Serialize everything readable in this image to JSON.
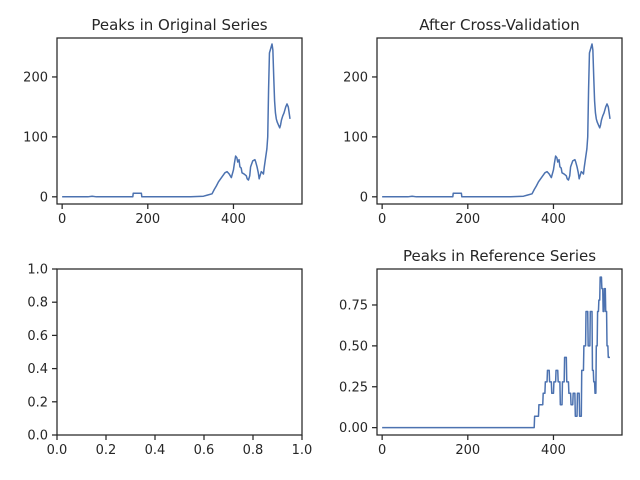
{
  "accent": "#4c72b0",
  "chart_data": [
    {
      "type": "line",
      "title": "Peaks in Original Series",
      "xlim": [
        -12,
        560
      ],
      "ylim": [
        -12,
        265
      ],
      "xticks": [
        0,
        200,
        400
      ],
      "yticks": [
        0,
        100,
        200
      ],
      "xtick_labels": [
        "0",
        "200",
        "400"
      ],
      "ytick_labels": [
        "0",
        "100",
        "200"
      ],
      "series": [
        {
          "x": [
            0,
            60,
            70,
            80,
            100,
            165,
            166,
            175,
            176,
            185,
            186,
            200,
            250,
            300,
            330,
            340,
            350,
            355,
            360,
            365,
            370,
            375,
            380,
            385,
            390,
            395,
            400,
            402,
            405,
            408,
            410,
            413,
            415,
            418,
            420,
            425,
            430,
            432,
            435,
            438,
            440,
            445,
            450,
            452,
            455,
            458,
            460,
            462,
            465,
            468,
            470,
            472,
            475,
            478,
            480,
            482,
            484,
            486,
            488,
            490,
            492,
            494,
            496,
            498,
            500,
            502,
            505,
            508,
            510,
            512,
            515,
            518,
            520,
            522,
            525,
            528,
            530,
            532
          ],
          "y": [
            0,
            0,
            1,
            0,
            0,
            0,
            6,
            6,
            6,
            6,
            0,
            0,
            0,
            0,
            1,
            3,
            5,
            12,
            18,
            25,
            30,
            35,
            40,
            42,
            38,
            32,
            45,
            55,
            68,
            65,
            58,
            62,
            50,
            48,
            40,
            38,
            35,
            30,
            28,
            35,
            50,
            60,
            62,
            58,
            50,
            40,
            30,
            35,
            42,
            40,
            38,
            50,
            65,
            80,
            100,
            180,
            240,
            245,
            250,
            255,
            245,
            200,
            160,
            140,
            130,
            125,
            120,
            115,
            120,
            128,
            135,
            140,
            145,
            150,
            155,
            150,
            140,
            130
          ]
        }
      ]
    },
    {
      "type": "line",
      "title": "After Cross-Validation",
      "xlim": [
        -12,
        560
      ],
      "ylim": [
        -12,
        265
      ],
      "xticks": [
        0,
        200,
        400
      ],
      "yticks": [
        0,
        100,
        200
      ],
      "xtick_labels": [
        "0",
        "200",
        "400"
      ],
      "ytick_labels": [
        "0",
        "100",
        "200"
      ],
      "series": [
        {
          "x": [
            0,
            60,
            70,
            80,
            100,
            165,
            166,
            175,
            176,
            185,
            186,
            200,
            250,
            300,
            330,
            340,
            350,
            355,
            360,
            365,
            370,
            375,
            380,
            385,
            390,
            395,
            400,
            402,
            405,
            408,
            410,
            413,
            415,
            418,
            420,
            425,
            430,
            432,
            435,
            438,
            440,
            445,
            450,
            452,
            455,
            458,
            460,
            462,
            465,
            468,
            470,
            472,
            475,
            478,
            480,
            482,
            484,
            486,
            488,
            490,
            492,
            494,
            496,
            498,
            500,
            502,
            505,
            508,
            510,
            512,
            515,
            518,
            520,
            522,
            525,
            528,
            530,
            532
          ],
          "y": [
            0,
            0,
            1,
            0,
            0,
            0,
            6,
            6,
            6,
            6,
            0,
            0,
            0,
            0,
            1,
            3,
            5,
            12,
            18,
            25,
            30,
            35,
            40,
            42,
            38,
            32,
            45,
            55,
            68,
            65,
            58,
            62,
            50,
            48,
            40,
            38,
            35,
            30,
            28,
            35,
            50,
            60,
            62,
            58,
            50,
            40,
            30,
            35,
            42,
            40,
            38,
            50,
            65,
            80,
            100,
            180,
            240,
            245,
            250,
            255,
            245,
            200,
            160,
            140,
            130,
            125,
            120,
            115,
            120,
            128,
            135,
            140,
            145,
            150,
            155,
            150,
            140,
            130
          ]
        }
      ]
    },
    {
      "type": "line",
      "title": "",
      "xlim": [
        0,
        1
      ],
      "ylim": [
        0,
        1
      ],
      "xticks": [
        0,
        0.2,
        0.4,
        0.6,
        0.8,
        1.0
      ],
      "yticks": [
        0,
        0.2,
        0.4,
        0.6,
        0.8,
        1.0
      ],
      "xtick_labels": [
        "0.0",
        "0.2",
        "0.4",
        "0.6",
        "0.8",
        "1.0"
      ],
      "ytick_labels": [
        "0.0",
        "0.2",
        "0.4",
        "0.6",
        "0.8",
        "1.0"
      ],
      "series": []
    },
    {
      "type": "line",
      "title": "Peaks in Reference Series",
      "xlim": [
        -12,
        560
      ],
      "ylim": [
        -0.045,
        0.97
      ],
      "xticks": [
        0,
        200,
        400
      ],
      "yticks": [
        0,
        0.25,
        0.5,
        0.75
      ],
      "xtick_labels": [
        "0",
        "200",
        "400"
      ],
      "ytick_labels": [
        "0.00",
        "0.25",
        "0.50",
        "0.75"
      ],
      "series": [
        {
          "x": [
            0,
            355,
            356,
            365,
            366,
            375,
            376,
            380,
            381,
            385,
            386,
            390,
            391,
            395,
            396,
            400,
            401,
            405,
            406,
            410,
            411,
            415,
            416,
            420,
            421,
            425,
            426,
            430,
            431,
            435,
            436,
            440,
            441,
            445,
            446,
            450,
            451,
            455,
            456,
            460,
            461,
            465,
            466,
            470,
            471,
            475,
            476,
            480,
            481,
            485,
            486,
            490,
            491,
            493,
            494,
            496,
            497,
            499,
            500,
            502,
            503,
            505,
            506,
            508,
            509,
            512,
            513,
            515,
            516,
            518,
            519,
            521,
            522,
            524,
            525,
            527,
            528,
            530,
            531,
            532
          ],
          "y": [
            0,
            0,
            0.07,
            0.07,
            0.14,
            0.14,
            0.21,
            0.21,
            0.28,
            0.28,
            0.35,
            0.35,
            0.28,
            0.28,
            0.21,
            0.21,
            0.28,
            0.28,
            0.35,
            0.35,
            0.28,
            0.28,
            0.14,
            0.14,
            0.28,
            0.28,
            0.43,
            0.43,
            0.28,
            0.28,
            0.21,
            0.21,
            0.14,
            0.14,
            0.21,
            0.21,
            0.07,
            0.07,
            0.21,
            0.21,
            0.07,
            0.07,
            0.35,
            0.35,
            0.5,
            0.5,
            0.71,
            0.71,
            0.5,
            0.5,
            0.71,
            0.71,
            0.35,
            0.35,
            0.28,
            0.28,
            0.21,
            0.21,
            0.5,
            0.5,
            0.71,
            0.71,
            0.78,
            0.78,
            0.92,
            0.92,
            0.85,
            0.85,
            0.71,
            0.71,
            0.85,
            0.85,
            0.71,
            0.71,
            0.5,
            0.5,
            0.43,
            0.43,
            0.43,
            0.43
          ]
        }
      ]
    }
  ]
}
